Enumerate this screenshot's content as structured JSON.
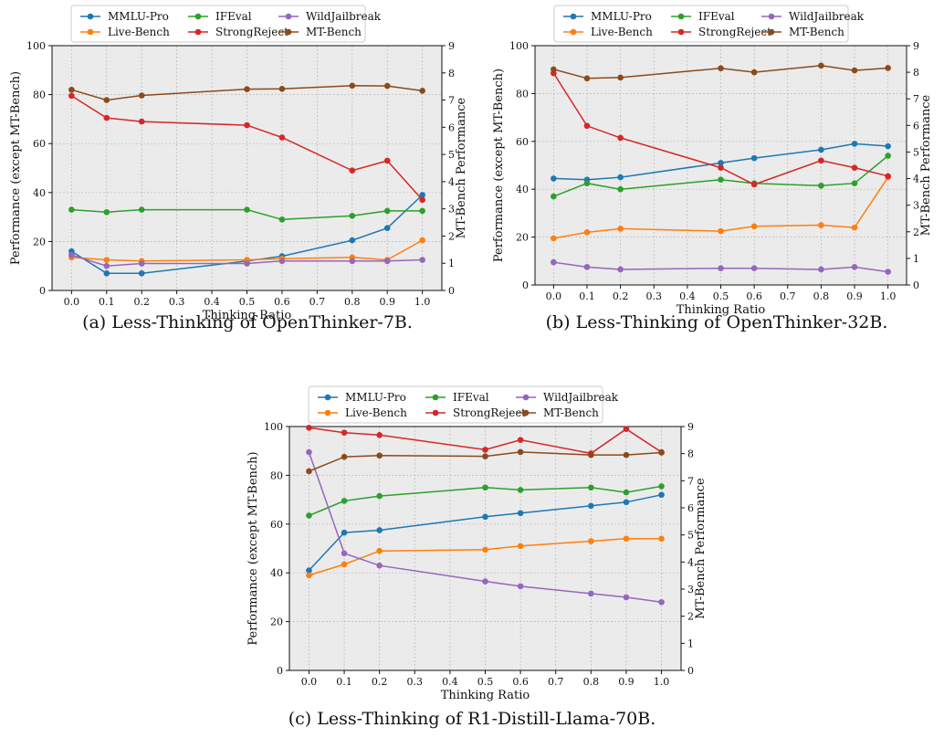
{
  "chart_data": [
    {
      "type": "line",
      "caption": "(a) Less-Thinking of OpenThinker-7B.",
      "xlabel": "Thinking Ratio",
      "ylabel": "Performance (except MT-Bench)",
      "y2label": "MT-Bench Performance",
      "x": [
        0.0,
        0.1,
        0.2,
        0.5,
        0.6,
        0.8,
        0.9,
        1.0
      ],
      "xticks": [
        "0.0",
        "0.1",
        "0.2",
        "0.3",
        "0.4",
        "0.5",
        "0.6",
        "0.7",
        "0.8",
        "0.9",
        "1.0"
      ],
      "ylim": [
        0,
        100
      ],
      "y2lim": [
        0,
        9
      ],
      "grid": true,
      "legend_position": "top",
      "series": [
        {
          "name": "MMLU-Pro",
          "axis": "left",
          "color": "#1f77b4",
          "values": [
            16,
            7,
            7,
            12,
            14,
            20.5,
            25.5,
            39
          ]
        },
        {
          "name": "Live-Bench",
          "axis": "left",
          "color": "#ff7f0e",
          "values": [
            13.5,
            12.5,
            12,
            12.5,
            13,
            13.5,
            12.5,
            20.5
          ]
        },
        {
          "name": "IFEval",
          "axis": "left",
          "color": "#2ca02c",
          "values": [
            33,
            32,
            33,
            33,
            29,
            30.5,
            32.5,
            32.5
          ]
        },
        {
          "name": "StrongReject",
          "axis": "left",
          "color": "#d62728",
          "values": [
            79.5,
            70.5,
            69,
            67.5,
            62.5,
            49,
            53,
            37
          ]
        },
        {
          "name": "WildJailbreak",
          "axis": "left",
          "color": "#9467bd",
          "values": [
            14.5,
            10,
            11,
            11,
            12,
            12,
            12,
            12.5
          ]
        },
        {
          "name": "MT-Bench",
          "axis": "right",
          "color": "#8c4a1c",
          "values": [
            7.38,
            7.0,
            7.17,
            7.4,
            7.41,
            7.53,
            7.52,
            7.34
          ]
        }
      ]
    },
    {
      "type": "line",
      "caption": "(b) Less-Thinking of OpenThinker-32B.",
      "xlabel": "Thinking Ratio",
      "ylabel": "Performance (except MT-Bench)",
      "y2label": "MT-Bench Performance",
      "x": [
        0.0,
        0.1,
        0.2,
        0.5,
        0.6,
        0.8,
        0.9,
        1.0
      ],
      "xticks": [
        "0.0",
        "0.1",
        "0.2",
        "0.3",
        "0.4",
        "0.5",
        "0.6",
        "0.7",
        "0.8",
        "0.9",
        "1.0"
      ],
      "ylim": [
        0,
        100
      ],
      "y2lim": [
        0,
        9
      ],
      "grid": true,
      "legend_position": "top",
      "series": [
        {
          "name": "MMLU-Pro",
          "axis": "left",
          "color": "#1f77b4",
          "values": [
            44.5,
            44,
            45,
            51,
            53,
            56.5,
            59,
            58
          ]
        },
        {
          "name": "Live-Bench",
          "axis": "left",
          "color": "#ff7f0e",
          "values": [
            19.5,
            22,
            23.5,
            22.5,
            24.5,
            25,
            24,
            45
          ]
        },
        {
          "name": "IFEval",
          "axis": "left",
          "color": "#2ca02c",
          "values": [
            37,
            42.5,
            40,
            44,
            42.5,
            41.5,
            42.5,
            54
          ]
        },
        {
          "name": "StrongReject",
          "axis": "left",
          "color": "#d62728",
          "values": [
            88.5,
            66.5,
            61.5,
            49,
            42,
            52,
            49,
            45.5
          ]
        },
        {
          "name": "WildJailbreak",
          "axis": "left",
          "color": "#9467bd",
          "values": [
            9.5,
            7.5,
            6.5,
            7,
            7,
            6.5,
            7.5,
            5.5
          ]
        },
        {
          "name": "MT-Bench",
          "axis": "right",
          "color": "#8c4a1c",
          "values": [
            8.11,
            7.77,
            7.8,
            8.15,
            8.0,
            8.25,
            8.07,
            8.16
          ]
        }
      ]
    },
    {
      "type": "line",
      "caption": "(c) Less-Thinking of R1-Distill-Llama-70B.",
      "xlabel": "Thinking Ratio",
      "ylabel": "Performance (except MT-Bench)",
      "y2label": "MT-Bench Performance",
      "x": [
        0.0,
        0.1,
        0.2,
        0.5,
        0.6,
        0.8,
        0.9,
        1.0
      ],
      "xticks": [
        "0.0",
        "0.1",
        "0.2",
        "0.3",
        "0.4",
        "0.5",
        "0.6",
        "0.7",
        "0.8",
        "0.9",
        "1.0"
      ],
      "ylim": [
        0,
        100
      ],
      "y2lim": [
        0,
        9
      ],
      "grid": true,
      "legend_position": "top",
      "series": [
        {
          "name": "MMLU-Pro",
          "axis": "left",
          "color": "#1f77b4",
          "values": [
            41,
            56.5,
            57.5,
            63,
            64.5,
            67.5,
            69,
            72
          ]
        },
        {
          "name": "Live-Bench",
          "axis": "left",
          "color": "#ff7f0e",
          "values": [
            39,
            43.5,
            49,
            49.5,
            51,
            53,
            54,
            54
          ]
        },
        {
          "name": "IFEval",
          "axis": "left",
          "color": "#2ca02c",
          "values": [
            63.5,
            69.5,
            71.5,
            75,
            74,
            75,
            73,
            75.5
          ]
        },
        {
          "name": "StrongReject",
          "axis": "left",
          "color": "#d62728",
          "values": [
            99.5,
            97.5,
            96.5,
            90.5,
            94.5,
            89,
            99,
            89.5
          ]
        },
        {
          "name": "WildJailbreak",
          "axis": "left",
          "color": "#9467bd",
          "values": [
            89.5,
            48,
            43,
            36.5,
            34.5,
            31.5,
            30,
            28
          ]
        },
        {
          "name": "MT-Bench",
          "axis": "right",
          "color": "#8c4a1c",
          "values": [
            7.35,
            7.88,
            7.93,
            7.9,
            8.06,
            7.95,
            7.95,
            8.04
          ]
        }
      ]
    }
  ]
}
